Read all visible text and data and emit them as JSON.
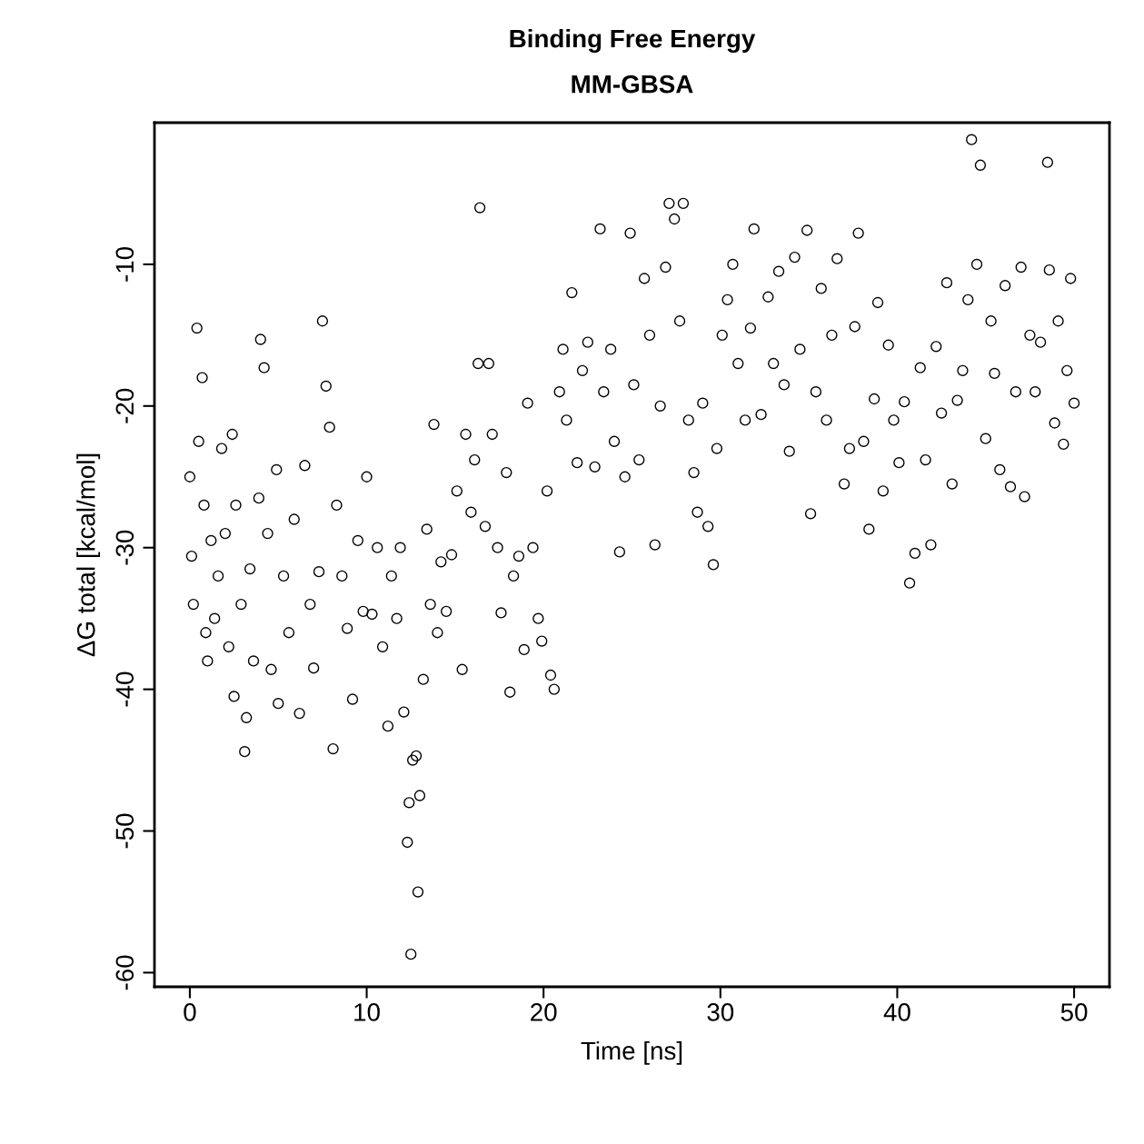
{
  "chart_data": {
    "type": "scatter",
    "title": "Binding Free Energy",
    "subtitle": "MM-GBSA",
    "xlabel": "Time [ns]",
    "ylabel": "ΔG total [kcal/mol]",
    "xlim": [
      -2,
      52
    ],
    "ylim": [
      -61,
      0
    ],
    "xticks": [
      0,
      10,
      20,
      30,
      40,
      50
    ],
    "yticks": [
      -60,
      -50,
      -40,
      -30,
      -20,
      -10
    ],
    "grid": false,
    "legend": false,
    "marker": "circle",
    "series": [
      {
        "color": "#000000",
        "x": [
          0,
          0.1,
          0.2,
          0.4,
          0.5,
          0.7,
          0.8,
          0.9,
          1.0,
          1.2,
          1.4,
          1.6,
          1.8,
          2.0,
          2.2,
          2.4,
          2.5,
          2.6,
          2.9,
          3.1,
          3.2,
          3.4,
          3.6,
          3.9,
          4.0,
          4.2,
          4.4,
          4.6,
          4.9,
          5.0,
          5.3,
          5.6,
          5.9,
          6.2,
          6.5,
          6.8,
          7.0,
          7.3,
          7.5,
          7.7,
          7.9,
          8.1,
          8.3,
          8.6,
          8.9,
          9.2,
          9.5,
          9.8,
          10.0,
          10.3,
          10.6,
          10.9,
          11.2,
          11.4,
          11.7,
          11.9,
          12.1,
          12.3,
          12.4,
          12.5,
          12.6,
          12.8,
          12.9,
          13.0,
          13.2,
          13.4,
          13.6,
          13.8,
          14.0,
          14.2,
          14.5,
          14.8,
          15.1,
          15.4,
          15.6,
          15.9,
          16.1,
          16.3,
          16.4,
          16.7,
          16.9,
          17.1,
          17.4,
          17.6,
          17.9,
          18.1,
          18.3,
          18.6,
          18.9,
          19.1,
          19.4,
          19.7,
          19.9,
          20.2,
          20.4,
          20.6,
          20.9,
          21.1,
          21.3,
          21.6,
          21.9,
          22.2,
          22.5,
          22.9,
          23.2,
          23.4,
          23.8,
          24.0,
          24.3,
          24.6,
          24.9,
          25.1,
          25.4,
          25.7,
          26.0,
          26.3,
          26.6,
          26.9,
          27.1,
          27.4,
          27.7,
          27.9,
          28.2,
          28.5,
          28.7,
          29.0,
          29.3,
          29.6,
          29.8,
          30.1,
          30.4,
          30.7,
          31.0,
          31.4,
          31.7,
          31.9,
          32.3,
          32.7,
          33.0,
          33.3,
          33.6,
          33.9,
          34.2,
          34.5,
          34.9,
          35.1,
          35.4,
          35.7,
          36.0,
          36.3,
          36.6,
          37.0,
          37.3,
          37.6,
          37.8,
          38.1,
          38.4,
          38.7,
          38.9,
          39.2,
          39.5,
          39.8,
          40.1,
          40.4,
          40.7,
          41.0,
          41.3,
          41.6,
          41.9,
          42.2,
          42.5,
          42.8,
          43.1,
          43.4,
          43.7,
          44.0,
          44.2,
          44.5,
          44.7,
          45.0,
          45.3,
          45.5,
          45.8,
          46.1,
          46.4,
          46.7,
          47.0,
          47.2,
          47.5,
          47.8,
          48.1,
          48.5,
          48.6,
          48.9,
          49.1,
          49.4,
          49.6,
          49.8,
          50.0
        ],
        "values": [
          -25,
          -30.6,
          -34,
          -14.5,
          -22.5,
          -18,
          -27,
          -36,
          -38,
          -29.5,
          -35,
          -32,
          -23,
          -29,
          -37,
          -22,
          -40.5,
          -27,
          -34,
          -44.4,
          -42,
          -31.5,
          -38,
          -26.5,
          -15.3,
          -17.3,
          -29,
          -38.6,
          -24.5,
          -41,
          -32,
          -36,
          -28,
          -41.7,
          -24.2,
          -34,
          -38.5,
          -31.7,
          -14,
          -18.6,
          -21.5,
          -44.2,
          -27,
          -32,
          -35.7,
          -40.7,
          -29.5,
          -34.5,
          -25,
          -34.7,
          -30,
          -37,
          -42.6,
          -32,
          -35,
          -30,
          -41.6,
          -50.8,
          -48,
          -58.7,
          -45,
          -44.7,
          -54.3,
          -47.5,
          -39.3,
          -28.7,
          -34,
          -21.3,
          -36,
          -31,
          -34.5,
          -30.5,
          -26,
          -38.6,
          -22,
          -27.5,
          -23.8,
          -17,
          -6,
          -28.5,
          -17,
          -22,
          -30,
          -34.6,
          -24.7,
          -40.2,
          -32,
          -30.6,
          -37.2,
          -19.8,
          -30,
          -35,
          -36.6,
          -26,
          -39,
          -40,
          -19,
          -16,
          -21,
          -12,
          -24,
          -17.5,
          -15.5,
          -24.3,
          -7.5,
          -19,
          -16,
          -22.5,
          -30.3,
          -25,
          -7.8,
          -18.5,
          -23.8,
          -11,
          -15,
          -29.8,
          -20,
          -10.2,
          -5.7,
          -6.8,
          -14,
          -5.7,
          -21,
          -24.7,
          -27.5,
          -19.8,
          -28.5,
          -31.2,
          -23,
          -15,
          -12.5,
          -10,
          -17,
          -21,
          -14.5,
          -7.5,
          -20.6,
          -12.3,
          -17,
          -10.5,
          -18.5,
          -23.2,
          -9.5,
          -16,
          -7.6,
          -27.6,
          -19,
          -11.7,
          -21,
          -15,
          -9.6,
          -25.5,
          -23,
          -14.4,
          -7.8,
          -22.5,
          -28.7,
          -19.5,
          -12.7,
          -26,
          -15.7,
          -21,
          -24,
          -19.7,
          -32.5,
          -30.4,
          -17.3,
          -23.8,
          -29.8,
          -15.8,
          -20.5,
          -11.3,
          -25.5,
          -19.6,
          -17.5,
          -12.5,
          -1.2,
          -10,
          -3,
          -22.3,
          -14,
          -17.7,
          -24.5,
          -11.5,
          -25.7,
          -19,
          -10.2,
          -26.4,
          -15,
          -19,
          -15.5,
          -2.8,
          -10.4,
          -21.2,
          -14,
          -22.7,
          -17.5,
          -11,
          -19.8
        ]
      }
    ]
  }
}
